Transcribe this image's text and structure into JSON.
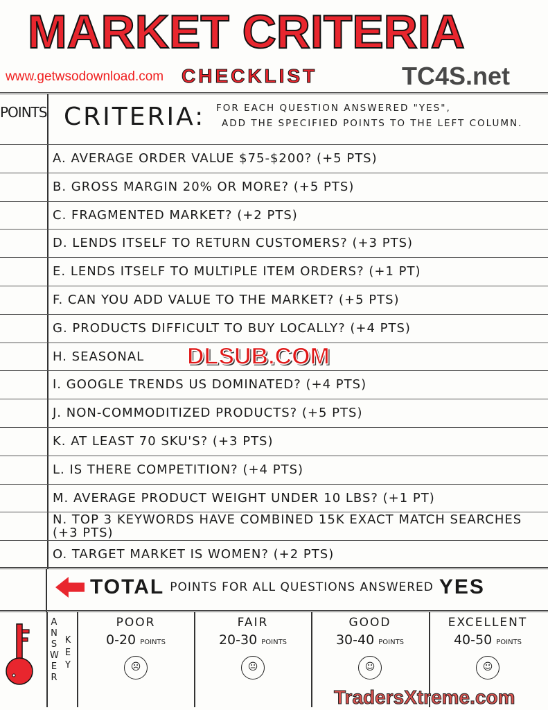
{
  "title": "MARKET CRITERIA",
  "subtitle": "CHECKLIST",
  "watermarks": {
    "top_right": "TC4S.net",
    "url": "www.getwsodownload.com",
    "center": "DLSUB.COM",
    "bottom": "TradersXtreme.com"
  },
  "header": {
    "points": "POINTS",
    "criteria": "CRITERIA:",
    "note_line1": "FOR EACH QUESTION ANSWERED \"YES\",",
    "note_line2": "ADD THE SPECIFIED POINTS TO THE LEFT COLUMN."
  },
  "criteria": [
    "A. AVERAGE ORDER VALUE $75-$200? (+5 PTS)",
    "B. GROSS MARGIN 20% OR MORE? (+5 PTS)",
    "C. FRAGMENTED MARKET? (+2 PTS)",
    "D. LENDS ITSELF TO RETURN CUSTOMERS? (+3 PTS)",
    "E. LENDS ITSELF TO MULTIPLE ITEM ORDERS? (+1 PT)",
    "F. CAN YOU ADD VALUE TO THE MARKET? (+5 PTS)",
    "G. PRODUCTS DIFFICULT TO BUY LOCALLY? (+4 PTS)",
    "H. SEASONAL",
    "I. GOOGLE TRENDS US DOMINATED? (+4 PTS)",
    "J. NON-COMMODITIZED PRODUCTS? (+5 PTS)",
    "K. AT LEAST 70 SKU'S? (+3 PTS)",
    "L. IS THERE COMPETITION? (+4 PTS)",
    "M. AVERAGE PRODUCT WEIGHT UNDER 10 LBS? (+1 PT)",
    "N. TOP 3 KEYWORDS HAVE COMBINED 15K EXACT MATCH SEARCHES (+3 PTS)",
    "O. TARGET MARKET IS WOMEN? (+2 PTS)"
  ],
  "total": {
    "bold": "TOTAL",
    "text": "POINTS FOR ALL QUESTIONS ANSWERED",
    "yes": "YES"
  },
  "answer_key": {
    "answer": "ANSWER",
    "key": "KEY",
    "levels": [
      {
        "label": "POOR",
        "range": "0-20",
        "unit": "POINTS",
        "face": "sad"
      },
      {
        "label": "FAIR",
        "range": "20-30",
        "unit": "POINTS",
        "face": "neutral"
      },
      {
        "label": "GOOD",
        "range": "30-40",
        "unit": "POINTS",
        "face": "smile"
      },
      {
        "label": "EXCELLENT",
        "range": "40-50",
        "unit": "POINTS",
        "face": "big-smile"
      }
    ]
  },
  "colors": {
    "accent": "#e8262e"
  }
}
